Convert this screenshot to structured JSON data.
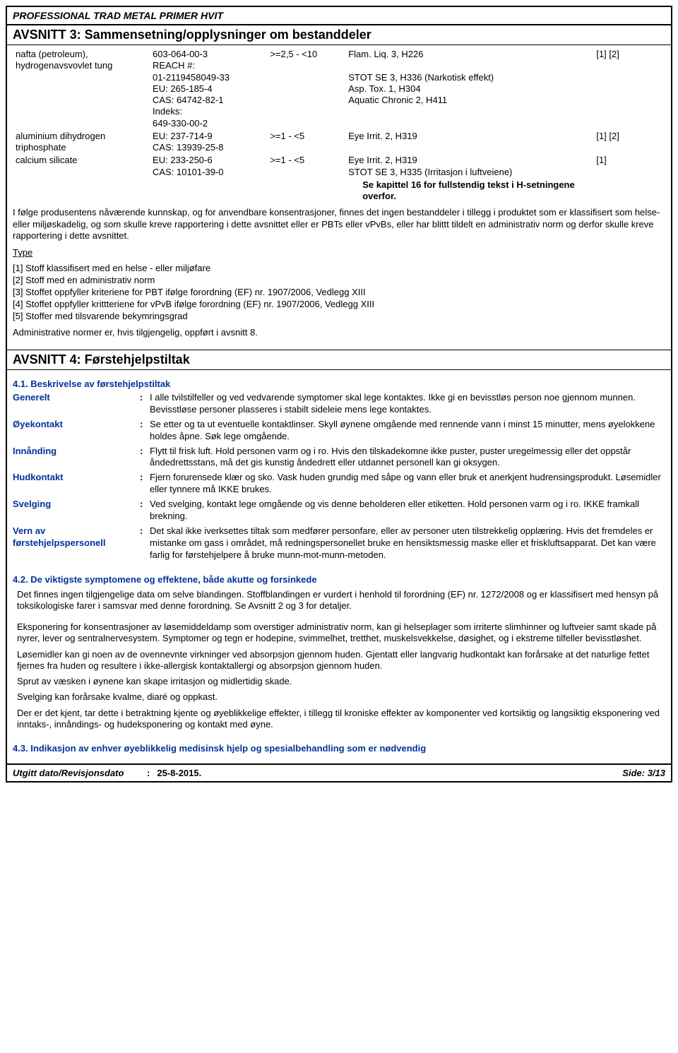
{
  "header_title": "PROFESSIONAL TRAD METAL PRIMER HVIT",
  "section3": {
    "title": "AVSNITT 3: Sammensetning/opplysninger om bestanddeler",
    "rows": [
      {
        "name": "nafta (petroleum), hydrogenavsvovlet tung",
        "ids": "603-064-00-3\nREACH #:\n01-2119458049-33\nEU: 265-185-4\nCAS: 64742-82-1\nIndeks:\n649-330-00-2",
        "conc": ">=2,5 - <10",
        "haz": "Flam. Liq. 3, H226\n\nSTOT SE 3, H336 (Narkotisk effekt)\nAsp. Tox. 1, H304\nAquatic Chronic 2, H411",
        "note": "[1] [2]"
      },
      {
        "name": "aluminium dihydrogen triphosphate",
        "ids": "EU: 237-714-9\nCAS: 13939-25-8",
        "conc": ">=1 - <5",
        "haz": "Eye Irrit. 2, H319",
        "note": "[1] [2]"
      },
      {
        "name": "calcium silicate",
        "ids": "EU: 233-250-6\nCAS: 10101-39-0",
        "conc": ">=1 - <5",
        "haz": "Eye Irrit. 2, H319\nSTOT SE 3, H335 (Irritasjon i luftveiene)",
        "note": "[1]"
      }
    ],
    "footnote_boxed": "Se kapittel 16 for fullstendig tekst i H-setningene overfor.",
    "paragraph": "I følge produsentens nåværende kunnskap, og for anvendbare konsentrasjoner, finnes det ingen bestanddeler i tillegg i produktet som er klassifisert som helse- eller miljøskadelig, og som skulle kreve rapportering i dette avsnittet eller er PBTs eller vPvBs, eller har blittt tildelt en administrativ norm og derfor skulle kreve rapportering i dette avsnittet.",
    "type_heading": "Type",
    "type_lines": [
      "[1] Stoff klassifisert med en helse - eller miljøfare",
      "[2] Stoff med en administrativ norm",
      "[3] Stoffet oppfyller kriteriene for PBT ifølge forordning (EF) nr. 1907/2006, Vedlegg XIII",
      "[4] Stoffet oppfyller krittteriene for vPvB ifølge forordning (EF) nr. 1907/2006, Vedlegg XIII",
      "[5] Stoffer med tilsvarende bekymringsgrad"
    ],
    "admin_line": "Administrative normer er, hvis tilgjengelig, oppført i avsnitt 8."
  },
  "section4": {
    "title": "AVSNITT 4: Førstehjelpstiltak",
    "sub41": "4.1. Beskrivelse av førstehjelpstiltak",
    "defs": [
      {
        "label": "Generelt",
        "text": "I alle tvilstilfeller og ved vedvarende symptomer skal lege kontaktes. Ikke gi en bevisstløs person noe gjennom munnen. Bevisstløse personer plasseres i stabilt sideleie mens lege kontaktes."
      },
      {
        "label": "Øyekontakt",
        "text": "Se etter og ta ut eventuelle kontaktlinser. Skyll øynene omgående med rennende vann i minst 15 minutter, mens øyelokkene holdes åpne. Søk lege omgående."
      },
      {
        "label": "Innånding",
        "text": "Flytt til frisk luft. Hold personen varm og i ro. Hvis den tilskadekomne ikke puster, puster uregelmessig eller det oppstår åndedrettsstans, må det gis kunstig åndedrett eller utdannet personell kan gi oksygen."
      },
      {
        "label": "Hudkontakt",
        "text": "Fjern forurensede klær og sko. Vask huden grundig med såpe og vann eller bruk et anerkjent hudrensingsprodukt. Løsemidler eller tynnere må IKKE brukes."
      },
      {
        "label": "Svelging",
        "text": "Ved svelging, kontakt lege omgående og vis denne beholderen eller etiketten. Hold personen varm og i ro. IKKE framkall brekning."
      },
      {
        "label": "Vern av førstehjelpspersonell",
        "text": "Det skal ikke iverksettes tiltak som medfører personfare, eller av personer uten tilstrekkelig opplæring.  Hvis det fremdeles er mistanke om gass i området, må redningspersonellet bruke en hensiktsmessig maske eller et friskluftsapparat.  Det kan være farlig for førstehjelpere å bruke munn-mot-munn-metoden."
      }
    ],
    "sub42": "4.2. De viktigste symptomene og effektene, både akutte og forsinkede",
    "p42_1": "Det finnes ingen tilgjengelige data om selve blandingen. Stoffblandingen er vurdert i henhold til forordning (EF) nr. 1272/2008 og er klassifisert med hensyn på toksikologiske farer i samsvar med denne forordning. Se Avsnitt 2 og 3 for detaljer.",
    "p42_2": "Eksponering for konsentrasjoner av løsemiddeldamp som overstiger administrativ norm, kan gi helseplager som irriterte slimhinner og luftveier samt skade på nyrer, lever og sentralnervesystem. Symptomer og tegn er hodepine, svimmelhet, tretthet, muskelsvekkelse, døsighet, og i ekstreme tilfeller bevisstløshet.",
    "p42_3": "Løsemidler kan gi noen av de ovennevnte virkninger ved absorpsjon gjennom huden. Gjentatt eller langvarig hudkontakt kan forårsake at det naturlige fettet fjernes fra huden og resultere i ikke-allergisk kontaktallergi og absorpsjon gjennom huden.",
    "p42_4": "Sprut av væsken i øynene kan skape irritasjon og midlertidig skade.",
    "p42_5": "Svelging kan forårsake kvalme, diaré og oppkast.",
    "p42_6": "Der er det kjent, tar dette i betraktning kjente og øyeblikkelige effekter, i tillegg til kroniske effekter av komponenter ved kortsiktig og langsiktig eksponering ved inntaks-, innåndings- og hudeksponering og kontakt med øyne.",
    "sub43": "4.3. Indikasjon av enhver øyeblikkelig medisinsk hjelp og spesialbehandling som er nødvendig"
  },
  "footer": {
    "label": "Utgitt dato/Revisjonsdato",
    "date": "25-8-2015.",
    "page": "Side: 3/13"
  },
  "colors": {
    "blue": "#003399"
  }
}
